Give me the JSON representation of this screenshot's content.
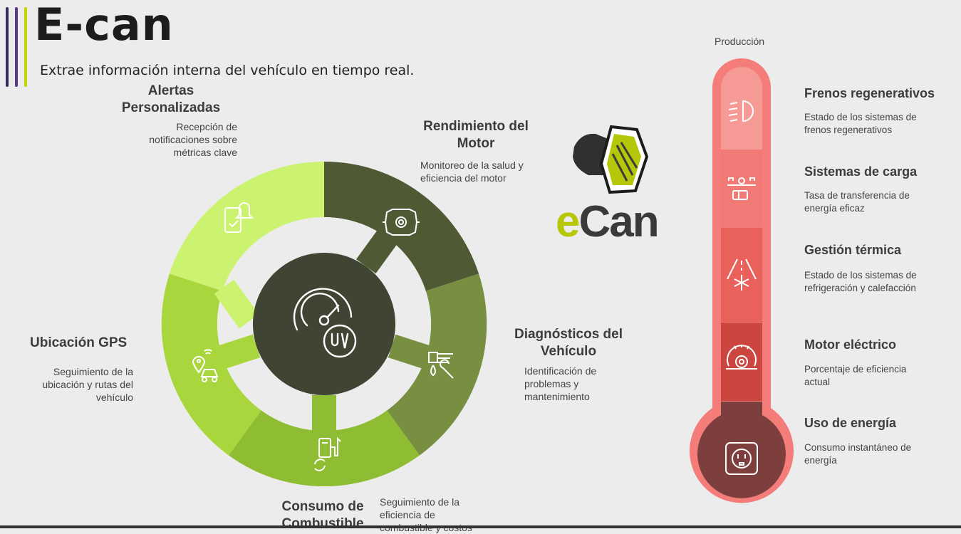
{
  "header": {
    "title": "E-can",
    "subtitle": "Extrae información interna del vehículo en tiempo real."
  },
  "colors": {
    "bar1": "#3b2a5c",
    "bar2": "#5a3d86",
    "bar3": "#c8d400",
    "seg_alertas": "#ccf36f",
    "seg_rendimiento": "#4f5a35",
    "seg_diagnosticos": "#788f42",
    "seg_consumo": "#8ebc32",
    "seg_gps": "#a8d63c",
    "hub": "#3f4532",
    "thermo_outer": "#f47d7a",
    "thermo_1": "#f69a96",
    "thermo_2": "#f07a75",
    "thermo_3": "#e8615b",
    "thermo_4": "#cc4640",
    "thermo_5": "#7d3f3d",
    "thermo_bulb": "#753d3b"
  },
  "wheel": {
    "hub_icon": "speedometer-icon",
    "segments": [
      {
        "id": "alertas",
        "title": "Alertas Personalizadas",
        "description": "Recepción de notificaciones sobre métricas clave",
        "icon": "phone-bell-icon"
      },
      {
        "id": "rendimiento",
        "title": "Rendimiento del Motor",
        "description": "Monitoreo de la salud y eficiencia del motor",
        "icon": "engine-gear-icon"
      },
      {
        "id": "diagnosticos",
        "title": "Diagnósticos del Vehículo",
        "description": "Identificación de problemas y mantenimiento",
        "icon": "oil-wrench-icon"
      },
      {
        "id": "consumo",
        "title": "Consumo de Combustible",
        "description": "Seguimiento de la eficiencia de combustible y costos",
        "icon": "fuel-pump-icon"
      },
      {
        "id": "gps",
        "title": "Ubicación GPS",
        "description": "Seguimiento de la ubicación y rutas del vehículo",
        "icon": "car-location-icon"
      }
    ]
  },
  "logo": {
    "text_e": "e",
    "text_can": "Can",
    "e_color": "#b6c70a",
    "can_color": "#3a3a3a"
  },
  "thermometer": {
    "top_label": "Producción",
    "items": [
      {
        "title": "Frenos regenerativos",
        "description": "Estado de los sistemas de frenos regenerativos",
        "icon": "brake-light-icon"
      },
      {
        "title": "Sistemas de carga",
        "description": "Tasa de transferencia de energía eficaz",
        "icon": "battery-charge-icon"
      },
      {
        "title": "Gestión térmica",
        "description": "Estado de los sistemas de refrigeración y calefacción",
        "icon": "snowflake-icon"
      },
      {
        "title": "Motor eléctrico",
        "description": "Porcentaje de eficiencia actual",
        "icon": "motor-gear-icon"
      },
      {
        "title": "Uso de energía",
        "description": "Consumo instantáneo de energía",
        "icon": "power-outlet-icon"
      }
    ]
  }
}
